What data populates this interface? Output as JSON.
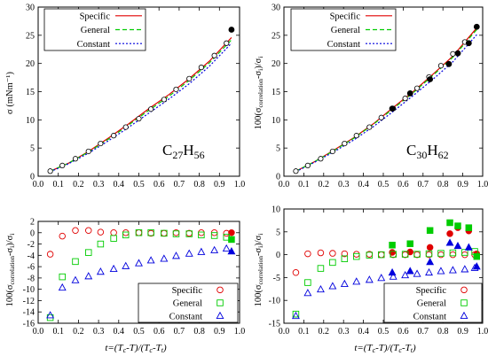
{
  "colors": {
    "specific": "#e00000",
    "general": "#00cc00",
    "constant": "#0000dd",
    "axis": "#000000"
  },
  "chart_data": [
    {
      "type": "line",
      "panel": "top-left",
      "annotation": "C27H56",
      "annotation_main": "C",
      "annotation_sub1": "27",
      "annotation_mid": "H",
      "annotation_sub2": "56",
      "ylabel": "σ (mNm⁻¹)",
      "xlim": [
        0,
        1
      ],
      "ylim": [
        0,
        30
      ],
      "xticks": [
        "0.0",
        "0.1",
        "0.2",
        "0.3",
        "0.4",
        "0.5",
        "0.6",
        "0.7",
        "0.8",
        "0.9",
        "1.0"
      ],
      "yticks": [
        "0",
        "5",
        "10",
        "15",
        "20",
        "25",
        "30"
      ],
      "legend": [
        "Specific",
        "General",
        "Constant"
      ],
      "legend_position": "top-left",
      "points_open": {
        "x": [
          0.06,
          0.12,
          0.185,
          0.25,
          0.31,
          0.375,
          0.435,
          0.5,
          0.56,
          0.625,
          0.685,
          0.75,
          0.81,
          0.875,
          0.935
        ],
        "y": [
          0.9,
          1.9,
          3.1,
          4.4,
          5.8,
          7.2,
          8.7,
          10.2,
          11.9,
          13.6,
          15.4,
          17.3,
          19.3,
          21.4,
          23.6
        ]
      },
      "points_filled": {
        "x": [
          0.96
        ],
        "y": [
          26.0
        ]
      },
      "curve_x": [
        0.06,
        0.15,
        0.25,
        0.35,
        0.45,
        0.55,
        0.65,
        0.75,
        0.85,
        0.96
      ],
      "series": [
        {
          "name": "Specific",
          "values": [
            0.9,
            2.3,
            4.4,
            6.8,
            9.3,
            12.0,
            14.5,
            17.3,
            20.4,
            24.6
          ]
        },
        {
          "name": "General",
          "values": [
            0.9,
            2.3,
            4.3,
            6.6,
            9.1,
            11.7,
            14.2,
            17.0,
            20.1,
            24.2
          ]
        },
        {
          "name": "Constant",
          "values": [
            0.8,
            2.2,
            4.1,
            6.3,
            8.7,
            11.2,
            13.7,
            16.4,
            19.5,
            23.6
          ]
        }
      ]
    },
    {
      "type": "line",
      "panel": "top-right",
      "annotation": "C30H62",
      "annotation_main": "C",
      "annotation_sub1": "30",
      "annotation_mid": "H",
      "annotation_sub2": "62",
      "ylabel": "100(σcorrelation-σi)/σi",
      "ylabel_a": "100(σ",
      "ylabel_b": "correlation",
      "ylabel_c": "-σ",
      "ylabel_d": "i",
      "ylabel_e": ")/σ",
      "ylabel_f": "i",
      "xlim": [
        0,
        1
      ],
      "ylim": [
        0,
        30
      ],
      "xticks": [
        "0.0",
        "0.1",
        "0.2",
        "0.3",
        "0.4",
        "0.5",
        "0.6",
        "0.7",
        "0.8",
        "0.9",
        "1.0"
      ],
      "yticks": [
        "0",
        "5",
        "10",
        "15",
        "20",
        "25",
        "30"
      ],
      "legend": [
        "Specific",
        "General",
        "Constant"
      ],
      "legend_position": "top-left",
      "points_open": {
        "x": [
          0.06,
          0.12,
          0.185,
          0.245,
          0.305,
          0.365,
          0.43,
          0.49,
          0.55,
          0.61,
          0.67,
          0.73,
          0.79,
          0.85,
          0.91
        ],
        "y": [
          0.9,
          1.9,
          3.1,
          4.4,
          5.8,
          7.2,
          8.7,
          10.4,
          12.0,
          13.8,
          15.6,
          17.6,
          19.6,
          21.7,
          23.8
        ]
      },
      "points_filled": {
        "x": [
          0.545,
          0.635,
          0.735,
          0.83,
          0.875,
          0.93,
          0.97
        ],
        "y": [
          12.0,
          14.7,
          17.2,
          19.9,
          21.8,
          23.6,
          26.5
        ]
      },
      "curve_x": [
        0.06,
        0.15,
        0.25,
        0.35,
        0.45,
        0.55,
        0.65,
        0.75,
        0.85,
        0.97
      ],
      "series": [
        {
          "name": "Specific",
          "values": [
            0.9,
            2.5,
            4.6,
            6.8,
            9.3,
            12.2,
            15.0,
            18.1,
            21.3,
            26.3
          ]
        },
        {
          "name": "General",
          "values": [
            0.9,
            2.5,
            4.5,
            6.7,
            9.2,
            12.0,
            14.8,
            17.9,
            21.1,
            26.0
          ]
        },
        {
          "name": "Constant",
          "values": [
            0.8,
            2.4,
            4.3,
            6.4,
            8.8,
            11.5,
            14.3,
            17.2,
            20.3,
            25.1
          ]
        }
      ]
    },
    {
      "type": "scatter",
      "panel": "bottom-left",
      "ylabel": "100(σcorrelation-σi)/σi",
      "ylabel_a": "100(σ",
      "ylabel_b": "correlation",
      "ylabel_c": "-σ",
      "ylabel_d": "i",
      "ylabel_e": ")/σ",
      "ylabel_f": "i",
      "xlabel": "t=(Tc-T)/(Tc-Tt)",
      "xlabel_a": "t=(T",
      "xlabel_b": "c",
      "xlabel_c": "-T)/(T",
      "xlabel_d": "c",
      "xlabel_e": "-T",
      "xlabel_f": "t",
      "xlabel_g": ")",
      "xlim": [
        0,
        1
      ],
      "ylim": [
        -16,
        2
      ],
      "xticks": [
        "0.0",
        "0.1",
        "0.2",
        "0.3",
        "0.4",
        "0.5",
        "0.6",
        "0.7",
        "0.8",
        "0.9",
        "1.0"
      ],
      "yticks": [
        "2",
        "0",
        "-2",
        "-4",
        "-6",
        "-8",
        "-10",
        "-12",
        "-14",
        "-16"
      ],
      "ytick_values": [
        2,
        0,
        -2,
        -4,
        -6,
        -8,
        -10,
        -12,
        -14,
        -16
      ],
      "legend": [
        "Specific",
        "General",
        "Constant"
      ],
      "legend_position": "bottom-right",
      "series": [
        {
          "name": "Specific",
          "marker": "circle",
          "x": [
            0.06,
            0.12,
            0.185,
            0.25,
            0.31,
            0.375,
            0.435,
            0.5,
            0.56,
            0.625,
            0.685,
            0.75,
            0.81,
            0.875,
            0.935
          ],
          "y": [
            -3.8,
            -0.6,
            0.4,
            0.4,
            0.1,
            0.0,
            0.0,
            0.0,
            -0.1,
            -0.1,
            0.0,
            -0.1,
            0.0,
            0.0,
            -0.1
          ],
          "filled_x": [
            0.96
          ],
          "filled_y": [
            0.0
          ]
        },
        {
          "name": "General",
          "marker": "square",
          "x": [
            0.06,
            0.12,
            0.185,
            0.25,
            0.31,
            0.375,
            0.435,
            0.5,
            0.56,
            0.625,
            0.685,
            0.75,
            0.81,
            0.875,
            0.935
          ],
          "y": [
            -15.0,
            -7.8,
            -5.1,
            -3.5,
            -2.0,
            -1.0,
            -0.4,
            0.0,
            0.0,
            -0.1,
            -0.2,
            -0.2,
            -0.4,
            -0.5,
            -0.8
          ],
          "filled_x": [
            0.96
          ],
          "filled_y": [
            -1.2
          ]
        },
        {
          "name": "Constant",
          "marker": "triangle",
          "x": [
            0.06,
            0.12,
            0.185,
            0.25,
            0.31,
            0.375,
            0.435,
            0.5,
            0.56,
            0.625,
            0.685,
            0.75,
            0.81,
            0.875,
            0.935
          ],
          "y": [
            -14.6,
            -9.7,
            -8.4,
            -7.7,
            -6.9,
            -6.4,
            -5.9,
            -5.4,
            -4.9,
            -4.6,
            -4.1,
            -3.7,
            -3.4,
            -3.1,
            -2.8
          ],
          "filled_x": [
            0.96
          ],
          "filled_y": [
            -3.3
          ]
        }
      ]
    },
    {
      "type": "scatter",
      "panel": "bottom-right",
      "ylabel": "100(σcorrelation-σi)/σi",
      "ylabel_a": "100(σ",
      "ylabel_b": "correlation",
      "ylabel_c": "-σ",
      "ylabel_d": "i",
      "ylabel_e": ")/σ",
      "ylabel_f": "i",
      "xlabel": "t=(Tc-T)/(Tc-Tt)",
      "xlabel_a": "t=(T",
      "xlabel_b": "c",
      "xlabel_c": "-T)/(T",
      "xlabel_d": "c",
      "xlabel_e": "-T",
      "xlabel_f": "t",
      "xlabel_g": ")",
      "xlim": [
        0,
        1
      ],
      "ylim": [
        -15,
        10
      ],
      "xticks": [
        "0.0",
        "0.1",
        "0.2",
        "0.3",
        "0.4",
        "0.5",
        "0.6",
        "0.7",
        "0.8",
        "0.9",
        "1.0"
      ],
      "yticks": [
        "10",
        "5",
        "0",
        "-5",
        "-10",
        "-15"
      ],
      "ytick_values": [
        10,
        5,
        0,
        -5,
        -10,
        -15
      ],
      "legend": [
        "Specific",
        "General",
        "Constant"
      ],
      "legend_position": "bottom-right",
      "series": [
        {
          "name": "Specific",
          "marker": "circle",
          "x": [
            0.06,
            0.12,
            0.185,
            0.245,
            0.305,
            0.365,
            0.43,
            0.49,
            0.55,
            0.61,
            0.67,
            0.73,
            0.79,
            0.85,
            0.91,
            0.96
          ],
          "y": [
            -3.9,
            0.2,
            0.4,
            0.3,
            0.2,
            0.1,
            0.1,
            0.0,
            0.0,
            0.0,
            0.0,
            0.0,
            0.0,
            0.0,
            0.0,
            0.0
          ],
          "filled_x": [
            0.545,
            0.635,
            0.735,
            0.835,
            0.875,
            0.93,
            0.97
          ],
          "filled_y": [
            0.5,
            0.6,
            1.6,
            4.6,
            5.9,
            5.2,
            0.2
          ]
        },
        {
          "name": "General",
          "marker": "square",
          "x": [
            0.06,
            0.12,
            0.185,
            0.245,
            0.305,
            0.365,
            0.43,
            0.49,
            0.55,
            0.61,
            0.67,
            0.73,
            0.79,
            0.85,
            0.91,
            0.96
          ],
          "y": [
            -13.0,
            -6.1,
            -3.0,
            -1.7,
            -0.9,
            -0.4,
            -0.1,
            0.0,
            0.1,
            0.1,
            0.1,
            0.2,
            0.3,
            0.4,
            0.5,
            0.7
          ],
          "filled_x": [
            0.545,
            0.635,
            0.735,
            0.835,
            0.875,
            0.93,
            0.97
          ],
          "filled_y": [
            2.1,
            2.4,
            5.3,
            7.0,
            6.3,
            5.9,
            -0.4
          ]
        },
        {
          "name": "Constant",
          "marker": "triangle",
          "x": [
            0.06,
            0.12,
            0.185,
            0.245,
            0.305,
            0.365,
            0.43,
            0.49,
            0.55,
            0.61,
            0.67,
            0.73,
            0.79,
            0.85,
            0.91,
            0.96
          ],
          "y": [
            -13.4,
            -8.4,
            -7.6,
            -6.9,
            -6.4,
            -5.9,
            -5.5,
            -5.1,
            -4.8,
            -4.5,
            -4.2,
            -3.9,
            -3.6,
            -3.4,
            -3.2,
            -2.9
          ],
          "filled_x": [
            0.545,
            0.635,
            0.735,
            0.835,
            0.875,
            0.93,
            0.97
          ],
          "filled_y": [
            -3.9,
            -3.6,
            -1.6,
            2.6,
            1.9,
            1.6,
            -2.6
          ]
        }
      ]
    }
  ]
}
